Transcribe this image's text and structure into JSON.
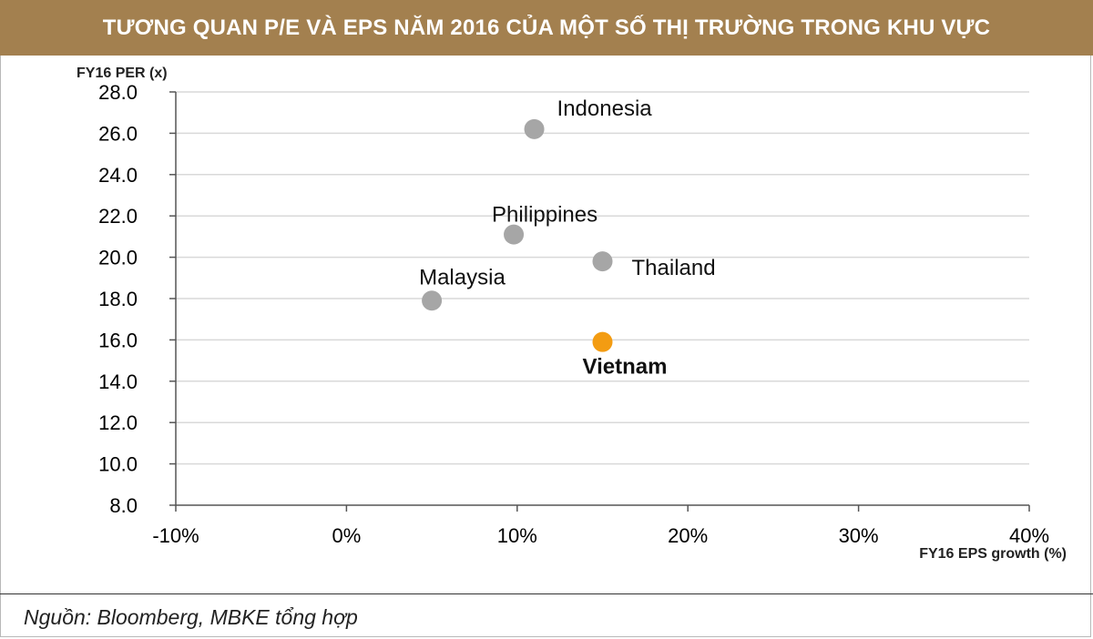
{
  "title": "TƯƠNG QUAN P/E VÀ EPS NĂM 2016 CỦA MỘT SỐ THỊ TRƯỜNG TRONG KHU VỰC",
  "source": "Nguồn:  Bloomberg, MBKE tổng hợp",
  "colors": {
    "banner": "#a3804f",
    "point": "#a6a6a6",
    "highlight_point": "#f39c12",
    "highlight_label": "#f5a00f",
    "grid": "#d9d9d9"
  },
  "chart_data": {
    "type": "scatter",
    "title": "TƯƠNG QUAN P/E VÀ EPS NĂM 2016 CỦA MỘT SỐ THỊ TRƯỜNG TRONG KHU VỰC",
    "xlabel": "FY16 EPS growth (%)",
    "ylabel": "FY16  PER (x)",
    "xlim": [
      -10,
      40
    ],
    "ylim": [
      8,
      28
    ],
    "x_ticks": [
      -10,
      0,
      10,
      20,
      30,
      40
    ],
    "x_tick_labels": [
      "-10%",
      "0%",
      "10%",
      "20%",
      "30%",
      "40%"
    ],
    "y_ticks": [
      8,
      10,
      12,
      14,
      16,
      18,
      20,
      22,
      24,
      26,
      28
    ],
    "y_tick_labels": [
      "8.0",
      "10.0",
      "12.0",
      "14.0",
      "16.0",
      "18.0",
      "20.0",
      "22.0",
      "24.0",
      "26.0",
      "28.0"
    ],
    "grid": true,
    "points": [
      {
        "label": "Indonesia",
        "x": 11.0,
        "y": 26.2,
        "highlight": false
      },
      {
        "label": "Philippines",
        "x": 9.8,
        "y": 21.1,
        "highlight": false
      },
      {
        "label": "Thailand",
        "x": 15.0,
        "y": 19.8,
        "highlight": false
      },
      {
        "label": "Malaysia",
        "x": 5.0,
        "y": 17.9,
        "highlight": false
      },
      {
        "label": "Vietnam",
        "x": 15.0,
        "y": 15.9,
        "highlight": true
      }
    ]
  }
}
